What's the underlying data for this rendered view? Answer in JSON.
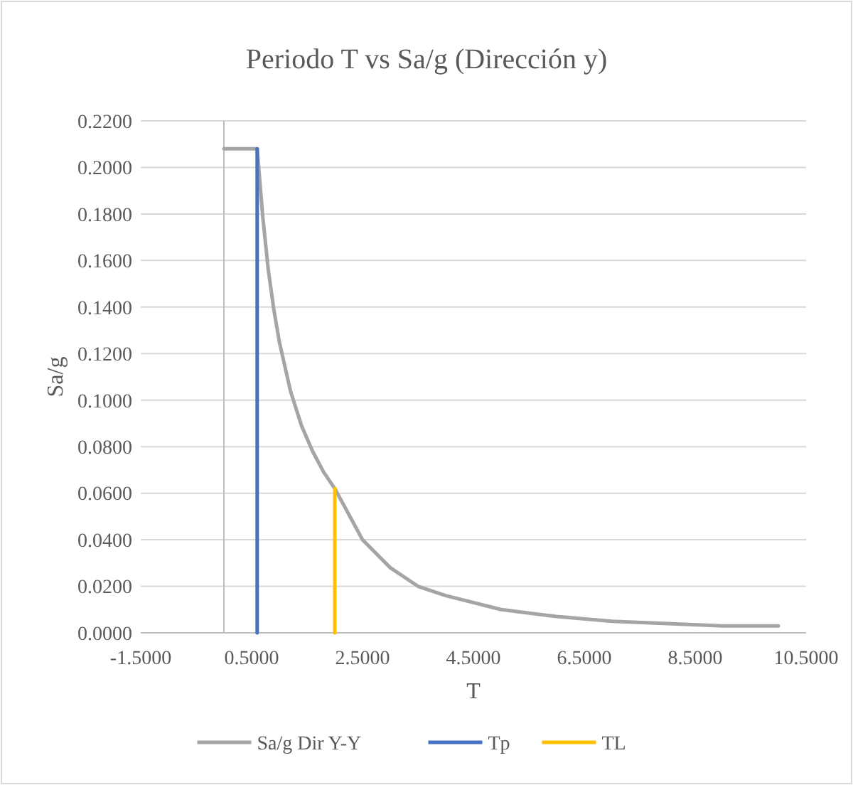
{
  "chart_data": {
    "type": "line",
    "title": "Periodo T vs Sa/g (Dirección y)",
    "xlabel": "T",
    "ylabel": "Sa/g",
    "xlim": [
      -1.5,
      10.5
    ],
    "xticks": [
      {
        "value": -1.5,
        "label": "-1.5000"
      },
      {
        "value": 0.5,
        "label": "0.5000"
      },
      {
        "value": 2.5,
        "label": "2.5000"
      },
      {
        "value": 4.5,
        "label": "4.5000"
      },
      {
        "value": 6.5,
        "label": "6.5000"
      },
      {
        "value": 8.5,
        "label": "8.5000"
      },
      {
        "value": 10.5,
        "label": "10.5000"
      }
    ],
    "ylim": [
      0,
      0.22
    ],
    "yticks": [
      {
        "value": 0,
        "label": "0.0000"
      },
      {
        "value": 0.02,
        "label": "0.0200"
      },
      {
        "value": 0.04,
        "label": "0.0400"
      },
      {
        "value": 0.06,
        "label": "0.0600"
      },
      {
        "value": 0.08,
        "label": "0.0800"
      },
      {
        "value": 0.1,
        "label": "0.1000"
      },
      {
        "value": 0.12,
        "label": "0.1200"
      },
      {
        "value": 0.14,
        "label": "0.1400"
      },
      {
        "value": 0.16,
        "label": "0.1600"
      },
      {
        "value": 0.18,
        "label": "0.1800"
      },
      {
        "value": 0.2,
        "label": "0.2000"
      },
      {
        "value": 0.22,
        "label": "0.2200"
      }
    ],
    "grid": "y",
    "legend": "bottom",
    "marker": "none",
    "series": [
      {
        "name": "Sa/g  Dir Y-Y",
        "color": "#a5a5a5",
        "x": [
          0,
          0.6,
          0.7,
          0.8,
          0.9,
          1.0,
          1.2,
          1.4,
          1.6,
          1.8,
          2.0,
          2.5,
          3.0,
          3.5,
          4,
          5,
          6,
          7,
          8,
          9,
          10
        ],
        "values": [
          0.208,
          0.208,
          0.179,
          0.156,
          0.139,
          0.125,
          0.104,
          0.089,
          0.078,
          0.069,
          0.062,
          0.04,
          0.028,
          0.02,
          0.016,
          0.01,
          0.007,
          0.005,
          0.004,
          0.003,
          0.003
        ]
      },
      {
        "name": "Tp",
        "color": "#4472c4",
        "x": [
          0.6,
          0.6
        ],
        "values": [
          0,
          0.208
        ]
      },
      {
        "name": "TL",
        "color": "#ffc000",
        "x": [
          2.0,
          2.0
        ],
        "values": [
          0,
          0.062
        ]
      }
    ]
  }
}
